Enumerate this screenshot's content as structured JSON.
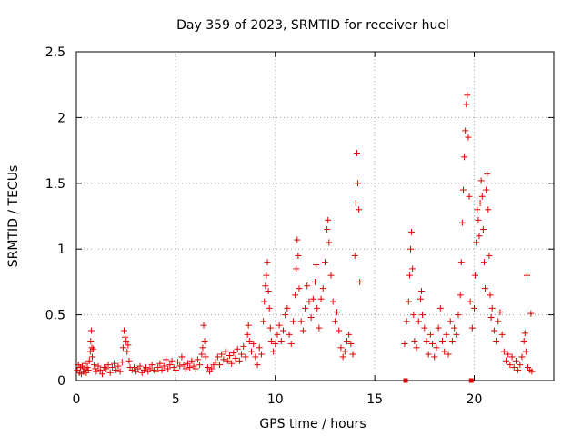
{
  "chart_data": {
    "type": "scatter",
    "title": "Day 359 of 2023, SRMTID for receiver huel",
    "xlabel": "GPS time / hours",
    "ylabel": "SRMTID / TECUs",
    "xlim": [
      0,
      24
    ],
    "ylim": [
      0,
      2.5
    ],
    "xticks": [
      0,
      5,
      10,
      15,
      20
    ],
    "xtick_labels": [
      "0",
      "5",
      "10",
      "15",
      "20"
    ],
    "yticks": [
      0,
      0.5,
      1,
      1.5,
      2,
      2.5
    ],
    "ytick_labels": [
      "0",
      "0.5",
      "1",
      "1.5",
      "2",
      "2.5"
    ],
    "grid": true,
    "marker": "plus",
    "color": "#dd0000",
    "square_markers": [
      {
        "x": 16.55,
        "y": 0.0
      },
      {
        "x": 19.85,
        "y": 0.0
      }
    ],
    "series": [
      {
        "name": "SRMTID",
        "points": [
          [
            0.05,
            0.08
          ],
          [
            0.1,
            0.12
          ],
          [
            0.15,
            0.06
          ],
          [
            0.2,
            0.1
          ],
          [
            0.25,
            0.05
          ],
          [
            0.3,
            0.11
          ],
          [
            0.35,
            0.07
          ],
          [
            0.4,
            0.09
          ],
          [
            0.45,
            0.13
          ],
          [
            0.5,
            0.06
          ],
          [
            0.55,
            0.1
          ],
          [
            0.6,
            0.08
          ],
          [
            0.65,
            0.15
          ],
          [
            0.7,
            0.22
          ],
          [
            0.72,
            0.3
          ],
          [
            0.75,
            0.38
          ],
          [
            0.78,
            0.25
          ],
          [
            0.8,
            0.18
          ],
          [
            0.85,
            0.24
          ],
          [
            0.9,
            0.12
          ],
          [
            0.95,
            0.09
          ],
          [
            1.0,
            0.07
          ],
          [
            1.1,
            0.11
          ],
          [
            1.2,
            0.08
          ],
          [
            1.3,
            0.05
          ],
          [
            1.4,
            0.1
          ],
          [
            1.5,
            0.09
          ],
          [
            1.6,
            0.12
          ],
          [
            1.7,
            0.06
          ],
          [
            1.8,
            0.1
          ],
          [
            1.9,
            0.13
          ],
          [
            2.0,
            0.08
          ],
          [
            2.1,
            0.11
          ],
          [
            2.2,
            0.07
          ],
          [
            2.3,
            0.14
          ],
          [
            2.35,
            0.25
          ],
          [
            2.4,
            0.38
          ],
          [
            2.45,
            0.33
          ],
          [
            2.5,
            0.3
          ],
          [
            2.55,
            0.22
          ],
          [
            2.6,
            0.27
          ],
          [
            2.65,
            0.15
          ],
          [
            2.7,
            0.1
          ],
          [
            2.8,
            0.08
          ],
          [
            2.9,
            0.1
          ],
          [
            3.0,
            0.07
          ],
          [
            3.1,
            0.09
          ],
          [
            3.2,
            0.11
          ],
          [
            3.3,
            0.06
          ],
          [
            3.4,
            0.08
          ],
          [
            3.5,
            0.1
          ],
          [
            3.6,
            0.07
          ],
          [
            3.7,
            0.09
          ],
          [
            3.8,
            0.12
          ],
          [
            3.9,
            0.08
          ],
          [
            4.0,
            0.07
          ],
          [
            4.1,
            0.1
          ],
          [
            4.2,
            0.13
          ],
          [
            4.3,
            0.08
          ],
          [
            4.4,
            0.11
          ],
          [
            4.5,
            0.16
          ],
          [
            4.6,
            0.09
          ],
          [
            4.7,
            0.12
          ],
          [
            4.8,
            0.15
          ],
          [
            4.9,
            0.1
          ],
          [
            5.0,
            0.08
          ],
          [
            5.1,
            0.14
          ],
          [
            5.2,
            0.11
          ],
          [
            5.3,
            0.18
          ],
          [
            5.4,
            0.12
          ],
          [
            5.5,
            0.09
          ],
          [
            5.6,
            0.13
          ],
          [
            5.7,
            0.1
          ],
          [
            5.8,
            0.15
          ],
          [
            5.9,
            0.11
          ],
          [
            6.0,
            0.09
          ],
          [
            6.1,
            0.16
          ],
          [
            6.2,
            0.12
          ],
          [
            6.3,
            0.2
          ],
          [
            6.35,
            0.25
          ],
          [
            6.4,
            0.42
          ],
          [
            6.45,
            0.3
          ],
          [
            6.5,
            0.18
          ],
          [
            6.6,
            0.1
          ],
          [
            6.7,
            0.07
          ],
          [
            6.8,
            0.09
          ],
          [
            6.9,
            0.12
          ],
          [
            7.0,
            0.14
          ],
          [
            7.1,
            0.18
          ],
          [
            7.2,
            0.12
          ],
          [
            7.3,
            0.2
          ],
          [
            7.4,
            0.16
          ],
          [
            7.5,
            0.22
          ],
          [
            7.6,
            0.15
          ],
          [
            7.7,
            0.19
          ],
          [
            7.8,
            0.13
          ],
          [
            7.9,
            0.21
          ],
          [
            8.0,
            0.17
          ],
          [
            8.1,
            0.24
          ],
          [
            8.2,
            0.15
          ],
          [
            8.3,
            0.2
          ],
          [
            8.4,
            0.26
          ],
          [
            8.5,
            0.18
          ],
          [
            8.6,
            0.35
          ],
          [
            8.65,
            0.42
          ],
          [
            8.7,
            0.3
          ],
          [
            8.8,
            0.22
          ],
          [
            8.9,
            0.28
          ],
          [
            9.0,
            0.18
          ],
          [
            9.1,
            0.12
          ],
          [
            9.2,
            0.25
          ],
          [
            9.3,
            0.2
          ],
          [
            9.4,
            0.45
          ],
          [
            9.45,
            0.6
          ],
          [
            9.5,
            0.72
          ],
          [
            9.55,
            0.8
          ],
          [
            9.6,
            0.9
          ],
          [
            9.65,
            0.68
          ],
          [
            9.7,
            0.55
          ],
          [
            9.75,
            0.4
          ],
          [
            9.8,
            0.3
          ],
          [
            9.9,
            0.22
          ],
          [
            10.0,
            0.28
          ],
          [
            10.1,
            0.35
          ],
          [
            10.2,
            0.42
          ],
          [
            10.3,
            0.3
          ],
          [
            10.4,
            0.38
          ],
          [
            10.5,
            0.5
          ],
          [
            10.6,
            0.55
          ],
          [
            10.7,
            0.35
          ],
          [
            10.8,
            0.28
          ],
          [
            10.9,
            0.45
          ],
          [
            11.0,
            0.65
          ],
          [
            11.05,
            0.85
          ],
          [
            11.1,
            1.07
          ],
          [
            11.15,
            0.95
          ],
          [
            11.2,
            0.7
          ],
          [
            11.3,
            0.45
          ],
          [
            11.4,
            0.38
          ],
          [
            11.5,
            0.55
          ],
          [
            11.6,
            0.72
          ],
          [
            11.7,
            0.6
          ],
          [
            11.8,
            0.48
          ],
          [
            11.9,
            0.62
          ],
          [
            12.0,
            0.75
          ],
          [
            12.05,
            0.88
          ],
          [
            12.1,
            0.55
          ],
          [
            12.2,
            0.4
          ],
          [
            12.3,
            0.62
          ],
          [
            12.4,
            0.7
          ],
          [
            12.5,
            0.9
          ],
          [
            12.6,
            1.15
          ],
          [
            12.65,
            1.22
          ],
          [
            12.7,
            1.05
          ],
          [
            12.8,
            0.8
          ],
          [
            12.9,
            0.6
          ],
          [
            13.0,
            0.45
          ],
          [
            13.1,
            0.52
          ],
          [
            13.2,
            0.38
          ],
          [
            13.3,
            0.25
          ],
          [
            13.4,
            0.18
          ],
          [
            13.5,
            0.22
          ],
          [
            13.6,
            0.3
          ],
          [
            13.7,
            0.35
          ],
          [
            13.8,
            0.28
          ],
          [
            13.9,
            0.2
          ],
          [
            14.0,
            0.95
          ],
          [
            14.05,
            1.35
          ],
          [
            14.1,
            1.73
          ],
          [
            14.15,
            1.5
          ],
          [
            14.2,
            1.3
          ],
          [
            14.25,
            0.75
          ],
          [
            16.5,
            0.28
          ],
          [
            16.6,
            0.45
          ],
          [
            16.7,
            0.6
          ],
          [
            16.75,
            0.8
          ],
          [
            16.8,
            1.0
          ],
          [
            16.85,
            1.13
          ],
          [
            16.9,
            0.85
          ],
          [
            16.95,
            0.5
          ],
          [
            17.0,
            0.3
          ],
          [
            17.1,
            0.25
          ],
          [
            17.2,
            0.45
          ],
          [
            17.3,
            0.62
          ],
          [
            17.35,
            0.68
          ],
          [
            17.4,
            0.5
          ],
          [
            17.5,
            0.4
          ],
          [
            17.6,
            0.3
          ],
          [
            17.7,
            0.2
          ],
          [
            17.8,
            0.35
          ],
          [
            17.9,
            0.28
          ],
          [
            18.0,
            0.18
          ],
          [
            18.1,
            0.25
          ],
          [
            18.2,
            0.4
          ],
          [
            18.3,
            0.55
          ],
          [
            18.4,
            0.3
          ],
          [
            18.5,
            0.22
          ],
          [
            18.6,
            0.35
          ],
          [
            18.7,
            0.2
          ],
          [
            18.8,
            0.45
          ],
          [
            18.9,
            0.3
          ],
          [
            19.0,
            0.4
          ],
          [
            19.1,
            0.35
          ],
          [
            19.2,
            0.5
          ],
          [
            19.3,
            0.65
          ],
          [
            19.35,
            0.9
          ],
          [
            19.4,
            1.2
          ],
          [
            19.45,
            1.45
          ],
          [
            19.5,
            1.7
          ],
          [
            19.55,
            1.9
          ],
          [
            19.6,
            2.1
          ],
          [
            19.65,
            2.17
          ],
          [
            19.7,
            1.85
          ],
          [
            19.75,
            1.4
          ],
          [
            19.8,
            0.6
          ],
          [
            19.9,
            0.4
          ],
          [
            20.0,
            0.55
          ],
          [
            20.05,
            0.8
          ],
          [
            20.1,
            1.05
          ],
          [
            20.15,
            1.3
          ],
          [
            20.2,
            1.22
          ],
          [
            20.25,
            1.1
          ],
          [
            20.3,
            1.35
          ],
          [
            20.35,
            1.52
          ],
          [
            20.4,
            1.4
          ],
          [
            20.45,
            1.15
          ],
          [
            20.5,
            0.9
          ],
          [
            20.55,
            0.7
          ],
          [
            20.6,
            1.45
          ],
          [
            20.65,
            1.57
          ],
          [
            20.7,
            1.3
          ],
          [
            20.75,
            0.95
          ],
          [
            20.8,
            0.65
          ],
          [
            20.85,
            0.48
          ],
          [
            20.9,
            0.55
          ],
          [
            21.0,
            0.38
          ],
          [
            21.1,
            0.3
          ],
          [
            21.2,
            0.45
          ],
          [
            21.3,
            0.52
          ],
          [
            21.4,
            0.35
          ],
          [
            21.5,
            0.22
          ],
          [
            21.6,
            0.15
          ],
          [
            21.7,
            0.2
          ],
          [
            21.8,
            0.12
          ],
          [
            21.9,
            0.18
          ],
          [
            22.0,
            0.1
          ],
          [
            22.1,
            0.15
          ],
          [
            22.2,
            0.08
          ],
          [
            22.3,
            0.12
          ],
          [
            22.4,
            0.18
          ],
          [
            22.5,
            0.3
          ],
          [
            22.55,
            0.36
          ],
          [
            22.6,
            0.22
          ],
          [
            22.65,
            0.8
          ],
          [
            22.7,
            0.1
          ],
          [
            22.8,
            0.08
          ],
          [
            22.85,
            0.51
          ],
          [
            22.9,
            0.07
          ]
        ]
      }
    ]
  }
}
